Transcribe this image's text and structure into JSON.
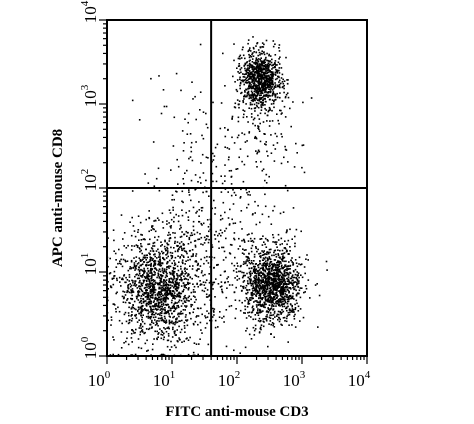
{
  "chart_data": {
    "type": "scatter",
    "title": "",
    "xlabel": "FITC anti-mouse CD3",
    "ylabel": "APC anti-mouse CD8",
    "xscale": "log",
    "yscale": "log",
    "xlim": [
      1,
      10000
    ],
    "ylim": [
      1,
      10000
    ],
    "x_ticks": [
      {
        "base": "10",
        "exp": "0"
      },
      {
        "base": "10",
        "exp": "1"
      },
      {
        "base": "10",
        "exp": "2"
      },
      {
        "base": "10",
        "exp": "3"
      },
      {
        "base": "10",
        "exp": "4"
      }
    ],
    "y_ticks": [
      {
        "base": "10",
        "exp": "0"
      },
      {
        "base": "10",
        "exp": "1"
      },
      {
        "base": "10",
        "exp": "2"
      },
      {
        "base": "10",
        "exp": "3"
      },
      {
        "base": "10",
        "exp": "4"
      }
    ],
    "quadrant_gates": {
      "x": 40,
      "y": 100
    },
    "grid": false,
    "point_color": "#000000",
    "populations": [
      {
        "center_x": 6,
        "center_y": 6,
        "spread": 0.32,
        "count": 1400
      },
      {
        "center_x": 350,
        "center_y": 7,
        "spread": 0.22,
        "count": 1300
      },
      {
        "center_x": 230,
        "center_y": 2000,
        "spread": 0.15,
        "count": 900
      },
      {
        "center_x": 40,
        "center_y": 20,
        "spread": 0.55,
        "count": 450
      },
      {
        "center_x": 200,
        "center_y": 400,
        "spread": 0.35,
        "count": 150
      },
      {
        "center_x": 30,
        "center_y": 500,
        "spread": 0.45,
        "count": 70
      }
    ]
  }
}
